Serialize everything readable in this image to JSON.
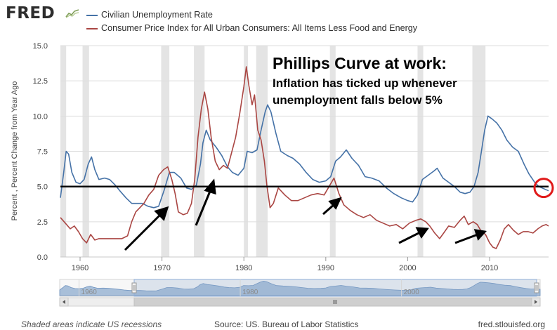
{
  "header": {
    "logo_text": "FRED",
    "logo_icon": "chart-line-icon"
  },
  "colors": {
    "unemployment": "#4572a7",
    "cpi": "#aa4643",
    "recession": "#e4e4e4",
    "threshold": "#000000",
    "circle": "#e01a1a",
    "navigator_fill": "#a8bfd9"
  },
  "chart_data": {
    "type": "line",
    "title": "Phillips Curve at work:",
    "subtitle": [
      "Inflation has ticked up whenever",
      "unemployment falls below 5%"
    ],
    "ylabel": "Percent , Percent Change from Year Ago",
    "xlabel": "",
    "xlim": [
      1957.6,
      2017.2
    ],
    "ylim": [
      0,
      15
    ],
    "y_ticks": [
      "0.0",
      "2.5",
      "5.0",
      "7.5",
      "10.0",
      "12.5",
      "15.0"
    ],
    "y_tick_values": [
      0,
      2.5,
      5,
      7.5,
      10,
      12.5,
      15
    ],
    "x_ticks": [
      "1960",
      "1970",
      "1980",
      "1990",
      "2000",
      "2010"
    ],
    "x_tick_values": [
      1960,
      1970,
      1980,
      1990,
      2000,
      2010
    ],
    "grid": "horizontal",
    "legend_position": "top-left",
    "recessions": [
      [
        1957.6,
        1958.3
      ],
      [
        1960.3,
        1961.1
      ],
      [
        1969.9,
        1970.9
      ],
      [
        1973.9,
        1975.2
      ],
      [
        1980.0,
        1980.5
      ],
      [
        1981.5,
        1982.9
      ],
      [
        1990.5,
        1991.2
      ],
      [
        2001.2,
        2001.9
      ],
      [
        2007.9,
        2009.5
      ]
    ],
    "threshold": 5.0,
    "series": [
      {
        "name": "Civilian Unemployment Rate",
        "x": [
          1957.6,
          1958.0,
          1958.3,
          1958.6,
          1959.0,
          1959.5,
          1960.0,
          1960.5,
          1961.0,
          1961.4,
          1961.8,
          1962.3,
          1963.0,
          1963.6,
          1964.3,
          1965.0,
          1965.6,
          1966.3,
          1967.0,
          1967.6,
          1968.3,
          1969.0,
          1969.6,
          1970.3,
          1970.9,
          1971.5,
          1972.3,
          1973.0,
          1973.6,
          1974.2,
          1974.7,
          1975.0,
          1975.4,
          1975.9,
          1976.6,
          1977.3,
          1978.0,
          1978.6,
          1979.3,
          1980.0,
          1980.4,
          1981.0,
          1981.6,
          1982.1,
          1982.6,
          1982.9,
          1983.3,
          1983.9,
          1984.5,
          1985.3,
          1986.0,
          1986.8,
          1987.6,
          1988.4,
          1989.2,
          1990.0,
          1990.6,
          1991.2,
          1991.8,
          1992.5,
          1993.2,
          1994.0,
          1994.8,
          1995.6,
          1996.5,
          1997.4,
          1998.3,
          1999.2,
          2000.0,
          2000.6,
          2001.2,
          2001.8,
          2002.5,
          2003.2,
          2003.6,
          2004.3,
          2005.0,
          2005.7,
          2006.4,
          2007.0,
          2007.6,
          2008.1,
          2008.6,
          2009.0,
          2009.4,
          2009.8,
          2010.3,
          2010.9,
          2011.5,
          2012.1,
          2012.8,
          2013.5,
          2014.2,
          2014.8,
          2015.5,
          2016.0,
          2016.4,
          2016.8,
          2017.2
        ],
        "y": [
          4.2,
          6.0,
          7.5,
          7.3,
          6.0,
          5.3,
          5.2,
          5.5,
          6.6,
          7.1,
          6.2,
          5.5,
          5.6,
          5.5,
          5.1,
          4.6,
          4.2,
          3.8,
          3.8,
          3.8,
          3.6,
          3.5,
          3.6,
          4.8,
          6.0,
          6.0,
          5.6,
          4.9,
          4.8,
          5.1,
          6.6,
          8.1,
          9.0,
          8.3,
          7.8,
          7.2,
          6.4,
          6.0,
          5.8,
          6.3,
          7.5,
          7.4,
          7.6,
          9.0,
          10.3,
          10.8,
          10.3,
          8.8,
          7.5,
          7.2,
          7.0,
          6.6,
          6.0,
          5.5,
          5.3,
          5.4,
          5.7,
          6.8,
          7.1,
          7.6,
          7.0,
          6.5,
          5.7,
          5.6,
          5.4,
          4.9,
          4.5,
          4.2,
          4.0,
          3.9,
          4.4,
          5.5,
          5.8,
          6.1,
          6.3,
          5.6,
          5.3,
          5.0,
          4.6,
          4.5,
          4.6,
          5.0,
          6.0,
          7.5,
          9.0,
          10.0,
          9.8,
          9.5,
          9.0,
          8.3,
          7.8,
          7.5,
          6.6,
          5.9,
          5.3,
          5.0,
          4.9,
          4.8,
          4.7
        ]
      },
      {
        "name": "Consumer Price Index for All Urban Consumers: All Items Less Food and Energy",
        "x": [
          1957.6,
          1958.2,
          1958.8,
          1959.3,
          1959.8,
          1960.3,
          1960.8,
          1961.3,
          1961.8,
          1962.3,
          1963.0,
          1963.7,
          1964.4,
          1965.1,
          1965.8,
          1966.3,
          1966.8,
          1967.3,
          1967.8,
          1968.4,
          1969.0,
          1969.6,
          1970.2,
          1970.7,
          1971.2,
          1971.6,
          1972.0,
          1972.6,
          1973.1,
          1973.6,
          1974.0,
          1974.4,
          1974.8,
          1975.2,
          1975.6,
          1976.0,
          1976.5,
          1977.0,
          1977.5,
          1978.0,
          1978.5,
          1979.0,
          1979.5,
          1980.0,
          1980.3,
          1980.6,
          1981.0,
          1981.3,
          1981.7,
          1982.1,
          1982.5,
          1982.8,
          1983.2,
          1983.6,
          1984.2,
          1985.0,
          1985.8,
          1986.6,
          1987.4,
          1988.2,
          1989.0,
          1989.8,
          1990.4,
          1991.0,
          1991.6,
          1992.2,
          1993.0,
          1993.8,
          1994.6,
          1995.4,
          1996.2,
          1997.0,
          1997.8,
          1998.6,
          1999.4,
          2000.2,
          2001.0,
          2001.6,
          2002.2,
          2002.7,
          2003.3,
          2003.9,
          2004.4,
          2005.0,
          2005.7,
          2006.4,
          2006.9,
          2007.4,
          2008.0,
          2008.5,
          2009.0,
          2009.5,
          2010.0,
          2010.4,
          2010.8,
          2011.3,
          2011.8,
          2012.3,
          2012.9,
          2013.5,
          2014.1,
          2014.7,
          2015.3,
          2015.9,
          2016.4,
          2016.9,
          2017.2
        ],
        "y": [
          2.8,
          2.4,
          2.0,
          2.2,
          1.8,
          1.3,
          1.0,
          1.6,
          1.2,
          1.3,
          1.3,
          1.3,
          1.3,
          1.3,
          1.5,
          2.5,
          3.2,
          3.5,
          3.8,
          4.4,
          4.8,
          5.8,
          6.2,
          6.4,
          5.5,
          4.5,
          3.2,
          3.0,
          3.1,
          3.8,
          5.5,
          8.5,
          10.5,
          11.7,
          10.5,
          8.5,
          6.8,
          6.2,
          6.5,
          6.3,
          7.4,
          8.5,
          10.2,
          12.1,
          13.5,
          12.2,
          10.8,
          11.5,
          9.0,
          8.3,
          6.8,
          5.1,
          3.5,
          3.8,
          4.9,
          4.4,
          4.0,
          4.0,
          4.2,
          4.4,
          4.5,
          4.4,
          5.0,
          5.6,
          4.5,
          3.7,
          3.3,
          3.0,
          2.8,
          3.0,
          2.6,
          2.4,
          2.2,
          2.3,
          2.0,
          2.4,
          2.6,
          2.7,
          2.5,
          2.2,
          1.7,
          1.3,
          1.7,
          2.2,
          2.1,
          2.6,
          2.9,
          2.3,
          2.5,
          2.3,
          1.8,
          1.6,
          1.0,
          0.7,
          0.6,
          1.2,
          2.0,
          2.3,
          1.9,
          1.6,
          1.8,
          1.8,
          1.7,
          2.0,
          2.2,
          2.3,
          2.2
        ]
      }
    ]
  },
  "navigator": {
    "tick_labels": [
      "1960",
      "1980",
      "2000"
    ],
    "tick_values": [
      1960,
      1980,
      2000
    ],
    "scroll_left_icon": "chevron-left-icon",
    "scroll_right_icon": "chevron-right-icon",
    "scroll_grip_icon": "grip-icon",
    "handle_icon": "range-handle-icon"
  },
  "footer": {
    "recession_note": "Shaded areas indicate US recessions",
    "source": "Source: US. Bureau of Labor Statistics",
    "site": "fred.stlouisfed.org"
  }
}
